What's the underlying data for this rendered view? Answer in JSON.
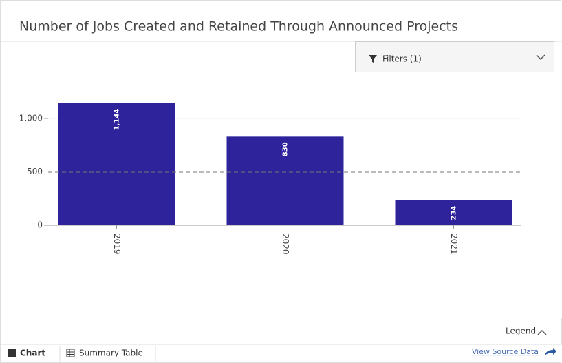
{
  "chart_data": {
    "type": "bar",
    "title": "Number of Jobs Created and Retained Through Announced Projects",
    "categories": [
      "2019",
      "2020",
      "2021"
    ],
    "values": [
      1144,
      830,
      234
    ],
    "value_labels": [
      "1,144",
      "830",
      "234"
    ],
    "color": "#2e239b",
    "ylim": [
      0,
      1200
    ],
    "yticks": [
      0,
      500,
      {
        "value": 1000,
        "label": "1,000"
      }
    ],
    "grid": true,
    "reference_line": 500
  },
  "ui": {
    "filters": "Filters (1)",
    "legend": "Legend",
    "tabs": [
      "Chart",
      "Summary Table"
    ],
    "source_link": "View Source Data"
  }
}
